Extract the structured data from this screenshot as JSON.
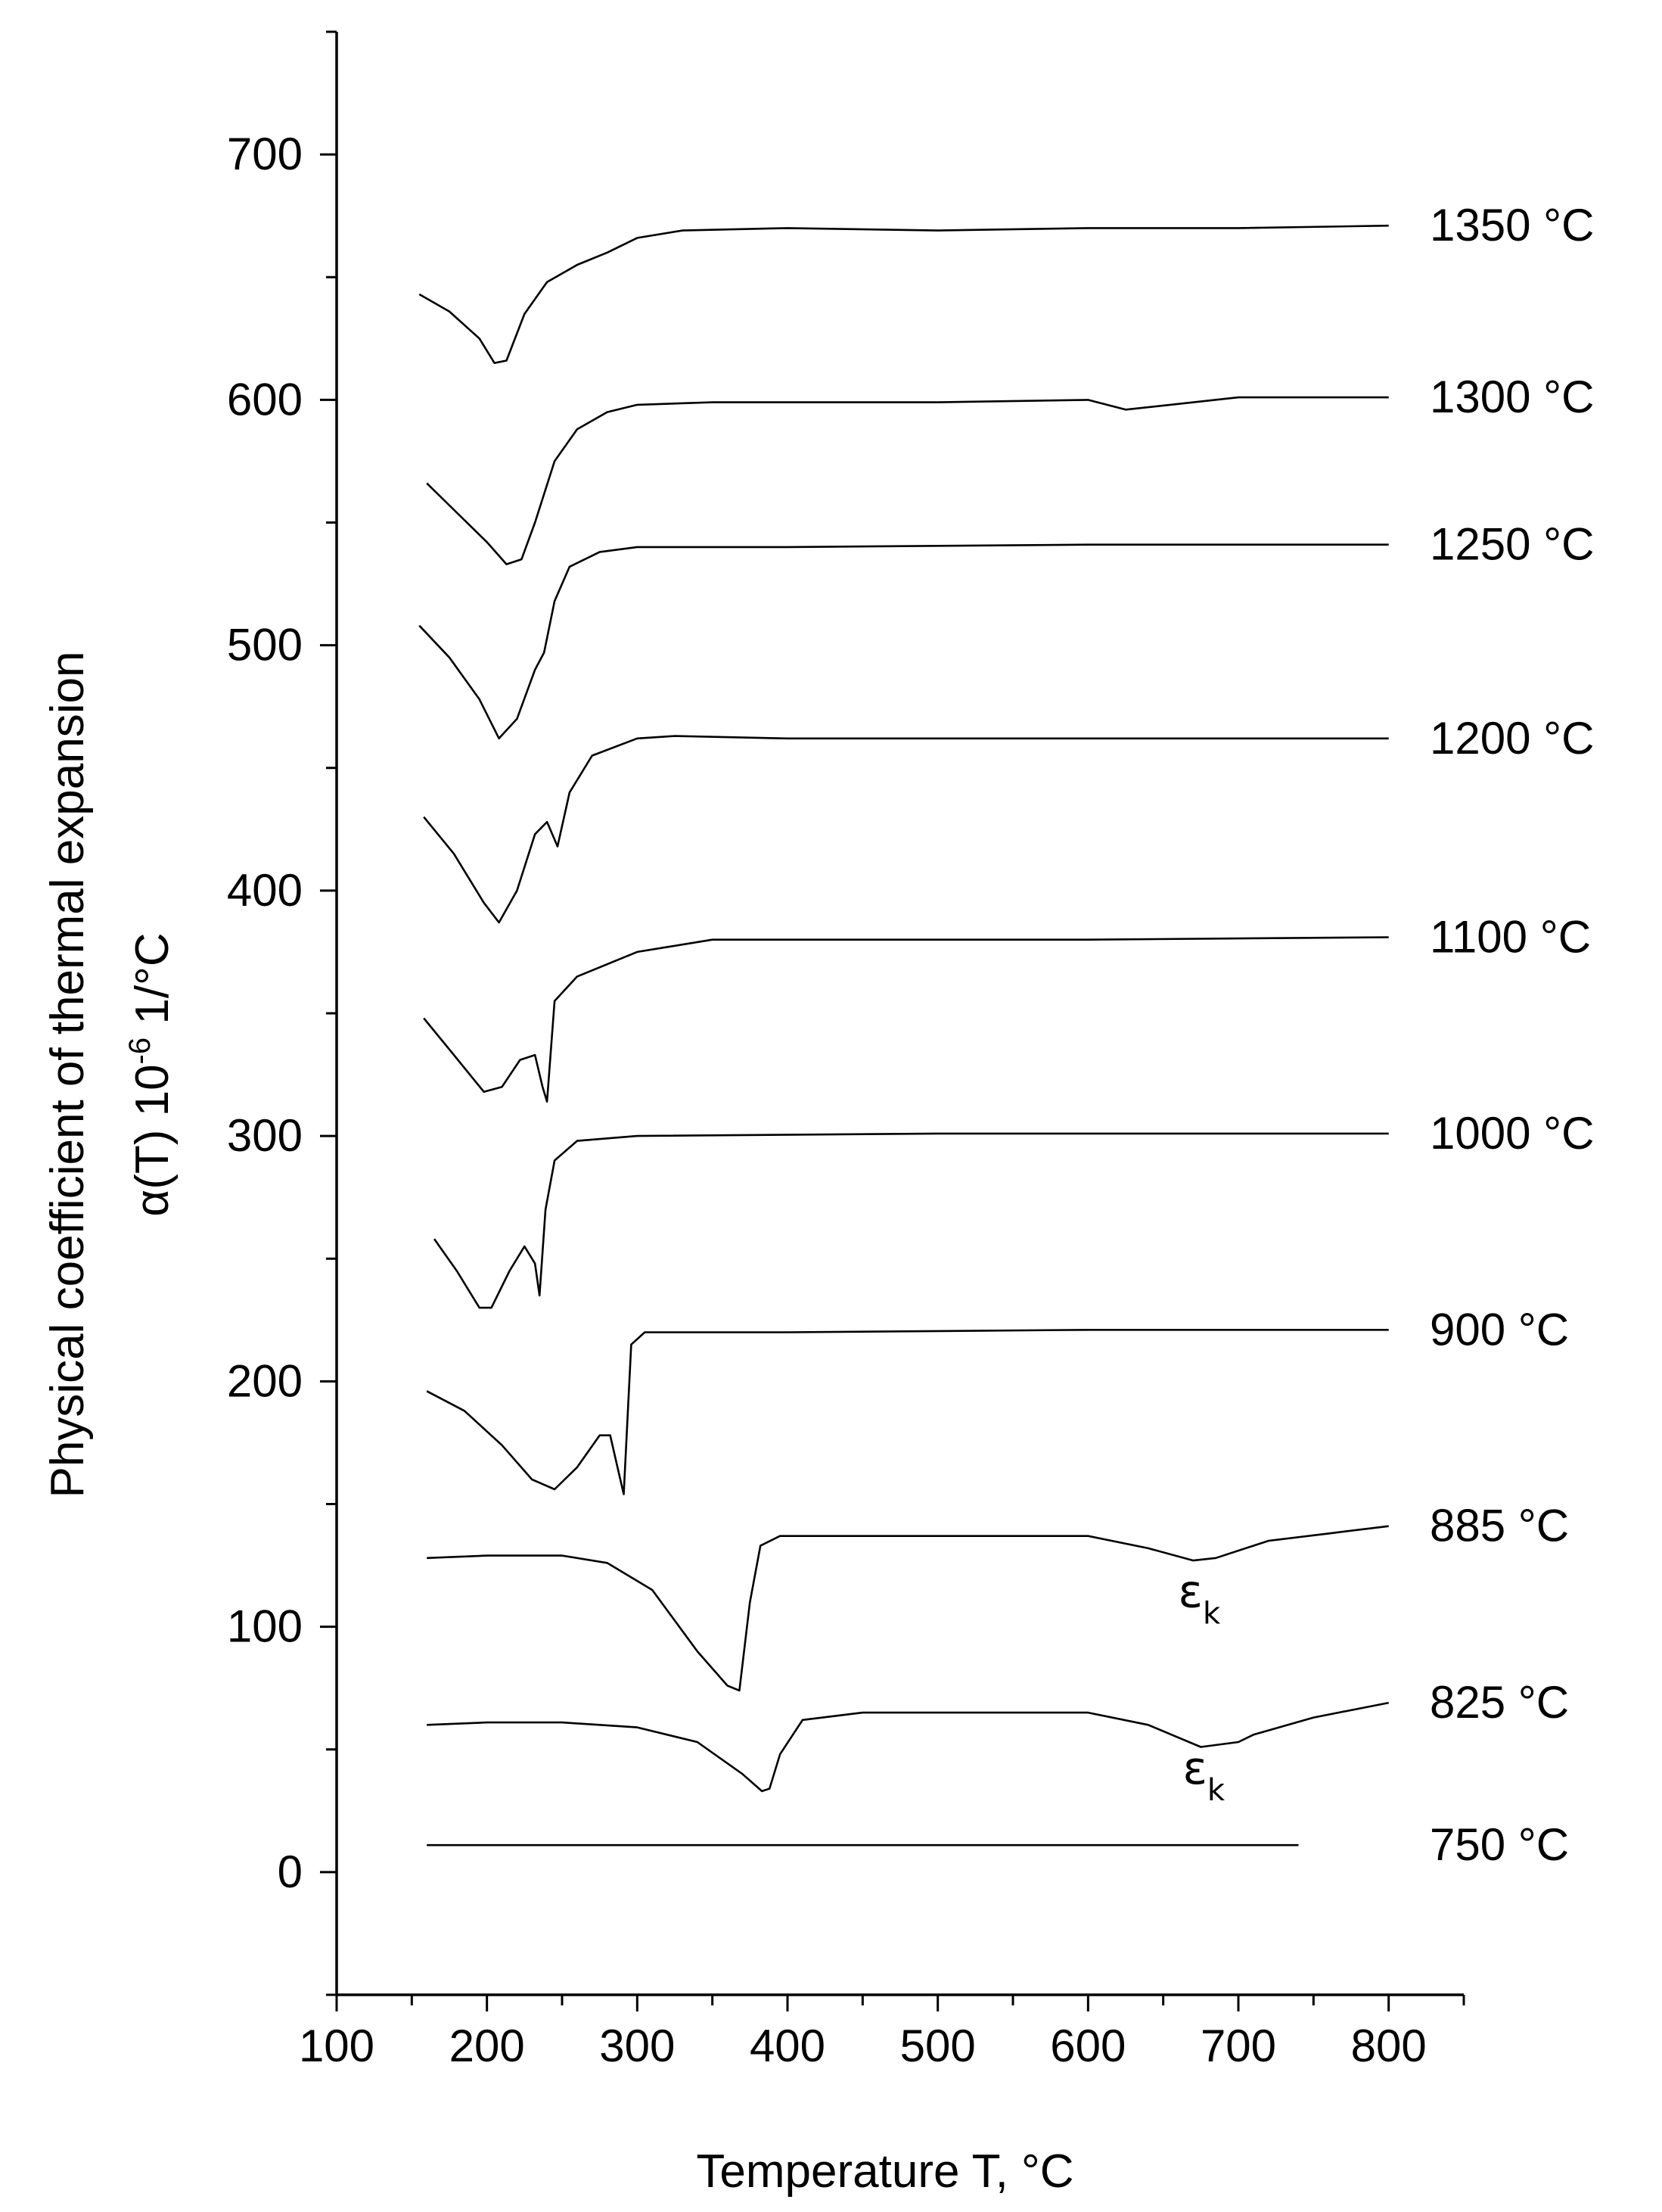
{
  "chart_data": {
    "type": "line",
    "title": "",
    "xlabel": "Temperature T, °C",
    "ylabel_line1": "Physical coefficient of thermal expansion",
    "ylabel_line2_prefix": "α(T) 10",
    "ylabel_line2_exp": "-6",
    "ylabel_line2_suffix": " 1/°C",
    "xlim": [
      100,
      850
    ],
    "ylim": [
      -50,
      750
    ],
    "xticks": [
      100,
      200,
      300,
      400,
      500,
      600,
      700,
      800
    ],
    "yticks": [
      0,
      100,
      200,
      300,
      400,
      500,
      600,
      700
    ],
    "grid": false,
    "legend": "none",
    "series": [
      {
        "name": "1350 °C",
        "x": [
          155,
          175,
          195,
          205,
          213,
          225,
          240,
          260,
          280,
          300,
          330,
          400,
          500,
          600,
          700,
          800
        ],
        "y": [
          643,
          636,
          625,
          615,
          616,
          635,
          648,
          655,
          660,
          666,
          669,
          670,
          669,
          670,
          670,
          671
        ]
      },
      {
        "name": "1300 °C",
        "x": [
          160,
          180,
          200,
          213,
          223,
          232,
          245,
          260,
          280,
          300,
          350,
          500,
          600,
          625,
          700,
          800
        ],
        "y": [
          566,
          554,
          542,
          533,
          535,
          550,
          575,
          588,
          595,
          598,
          599,
          599,
          600,
          596,
          601,
          601
        ]
      },
      {
        "name": "1250 °C",
        "x": [
          155,
          175,
          195,
          208,
          220,
          232,
          238,
          245,
          255,
          275,
          300,
          400,
          600,
          800
        ],
        "y": [
          508,
          495,
          478,
          462,
          470,
          490,
          497,
          518,
          532,
          538,
          540,
          540,
          541,
          541
        ]
      },
      {
        "name": "1200 °C",
        "x": [
          158,
          178,
          198,
          208,
          220,
          232,
          240,
          247,
          255,
          270,
          300,
          325,
          400,
          600,
          800
        ],
        "y": [
          430,
          415,
          395,
          387,
          400,
          423,
          428,
          418,
          440,
          455,
          462,
          463,
          462,
          462,
          462
        ]
      },
      {
        "name": "1100 °C",
        "x": [
          158,
          178,
          198,
          210,
          222,
          232,
          237,
          240,
          245,
          260,
          300,
          350,
          400,
          600,
          800
        ],
        "y": [
          348,
          333,
          318,
          320,
          331,
          333,
          320,
          314,
          355,
          365,
          375,
          380,
          380,
          380,
          381
        ]
      },
      {
        "name": "1000 °C",
        "x": [
          165,
          180,
          195,
          203,
          215,
          225,
          232,
          235,
          239,
          245,
          260,
          300,
          500,
          800
        ],
        "y": [
          258,
          245,
          230,
          230,
          245,
          255,
          248,
          235,
          270,
          290,
          298,
          300,
          301,
          301
        ]
      },
      {
        "name": "900 °C",
        "x": [
          160,
          185,
          210,
          230,
          245,
          260,
          275,
          282,
          288,
          291,
          296,
          305,
          400,
          600,
          800
        ],
        "y": [
          196,
          188,
          174,
          160,
          156,
          165,
          178,
          178,
          162,
          154,
          215,
          220,
          220,
          221,
          221
        ]
      },
      {
        "name": "885 °C",
        "x": [
          160,
          200,
          250,
          280,
          310,
          340,
          360,
          368,
          375,
          382,
          395,
          450,
          600,
          640,
          670,
          685,
          720,
          760,
          800
        ],
        "y": [
          128,
          129,
          129,
          126,
          115,
          90,
          76,
          74,
          110,
          133,
          137,
          137,
          137,
          132,
          127,
          128,
          135,
          138,
          141
        ]
      },
      {
        "name": "825 °C",
        "x": [
          160,
          200,
          250,
          300,
          340,
          370,
          383,
          388,
          395,
          410,
          450,
          600,
          640,
          675,
          700,
          710,
          750,
          800
        ],
        "y": [
          60,
          61,
          61,
          59,
          53,
          40,
          33,
          34,
          48,
          62,
          65,
          65,
          60,
          51,
          53,
          56,
          63,
          69
        ]
      },
      {
        "name": "750 °C",
        "x": [
          160,
          400,
          740
        ],
        "y": [
          11,
          11,
          11
        ]
      }
    ],
    "series_labels_y": [
      671,
      601,
      541,
      462,
      381,
      301,
      221,
      141,
      69,
      11
    ],
    "annotations": [
      {
        "text": "ε",
        "sub": "k",
        "x": 660,
        "y": 108
      },
      {
        "text": "ε",
        "sub": "k",
        "x": 663,
        "y": 36
      }
    ]
  }
}
